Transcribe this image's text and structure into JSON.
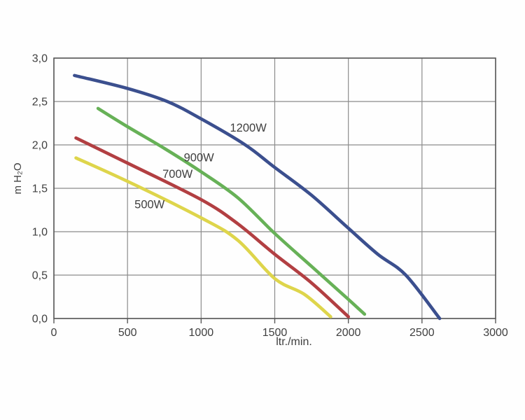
{
  "page": {
    "background": "#fefefe",
    "description": "Pump performance curves chart"
  },
  "chart_data": {
    "type": "line",
    "title": "",
    "xlabel": "ltr./min.",
    "ylabel": "m H₂O",
    "xlim": [
      0,
      3000
    ],
    "ylim": [
      0,
      3
    ],
    "grid": true,
    "legend_position": "inline-labels",
    "x_ticks": {
      "values": [
        0,
        500,
        1000,
        1500,
        2000,
        2500,
        3000
      ],
      "labels": [
        "0",
        "500",
        "1000",
        "1500",
        "2000",
        "2500",
        "3000"
      ]
    },
    "y_ticks": {
      "values": [
        0,
        0.5,
        1,
        1.5,
        2,
        2.5,
        3
      ],
      "labels": [
        "0,0",
        "0,5",
        "1,0",
        "1,5",
        "2,0",
        "2,5",
        "3,0"
      ]
    },
    "colors": {
      "grid": "#8c8c8c",
      "frame": "#595959",
      "text": "#3f3f3f"
    },
    "series": [
      {
        "name": "1200W",
        "color": "#3b4f8e",
        "label_pos": [
          1320,
          2.2
        ],
        "points": [
          [
            140,
            2.8
          ],
          [
            500,
            2.65
          ],
          [
            770,
            2.5
          ],
          [
            1000,
            2.3
          ],
          [
            1300,
            2.0
          ],
          [
            1500,
            1.74
          ],
          [
            1750,
            1.42
          ],
          [
            2000,
            1.04
          ],
          [
            2200,
            0.74
          ],
          [
            2390,
            0.5
          ],
          [
            2620,
            0.0
          ]
        ]
      },
      {
        "name": "900W",
        "color": "#67b157",
        "label_pos": [
          985,
          1.86
        ],
        "points": [
          [
            300,
            2.42
          ],
          [
            500,
            2.21
          ],
          [
            750,
            1.96
          ],
          [
            1000,
            1.69
          ],
          [
            1250,
            1.39
          ],
          [
            1500,
            0.98
          ],
          [
            1750,
            0.6
          ],
          [
            2000,
            0.22
          ],
          [
            2110,
            0.05
          ]
        ]
      },
      {
        "name": "700W",
        "color": "#b23f42",
        "label_pos": [
          840,
          1.67
        ],
        "points": [
          [
            150,
            2.08
          ],
          [
            500,
            1.79
          ],
          [
            1000,
            1.37
          ],
          [
            1250,
            1.09
          ],
          [
            1500,
            0.74
          ],
          [
            1750,
            0.41
          ],
          [
            2000,
            0.02
          ]
        ]
      },
      {
        "name": "500W",
        "color": "#ded54b",
        "label_pos": [
          650,
          1.32
        ],
        "points": [
          [
            150,
            1.85
          ],
          [
            500,
            1.58
          ],
          [
            1000,
            1.16
          ],
          [
            1250,
            0.9
          ],
          [
            1500,
            0.46
          ],
          [
            1700,
            0.28
          ],
          [
            1880,
            0.02
          ]
        ]
      }
    ]
  }
}
